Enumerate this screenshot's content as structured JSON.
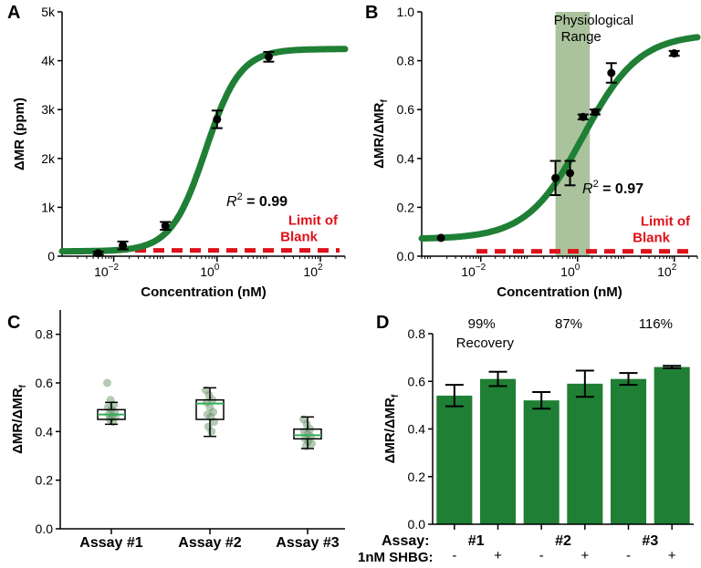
{
  "colors": {
    "green": "#1f7f35",
    "blank": "#e0101a",
    "band": "#9cb88c",
    "box_point": "#5a8a5a"
  },
  "panels": {
    "a": "A",
    "b": "B",
    "c": "C",
    "d": "D"
  },
  "chart_data": [
    {
      "id": "A",
      "type": "line",
      "xlabel": "Concentration (nM)",
      "ylabel": "ΔMR (ppm)",
      "xscale": "log",
      "xlim": [
        0.001,
        300
      ],
      "ylim": [
        0,
        5000
      ],
      "yticks": [
        {
          "v": 0,
          "t": "0"
        },
        {
          "v": 1000,
          "t": "1k"
        },
        {
          "v": 2000,
          "t": "2k"
        },
        {
          "v": 3000,
          "t": "3k"
        },
        {
          "v": 4000,
          "t": "4k"
        },
        {
          "v": 5000,
          "t": "5k"
        }
      ],
      "xticks": [
        {
          "v": 0.01,
          "b": "10",
          "e": "−2"
        },
        {
          "v": 1,
          "b": "10",
          "e": "0"
        },
        {
          "v": 100,
          "b": "10",
          "e": "2"
        }
      ],
      "fit": {
        "bottom": 100,
        "top": 4240,
        "ec50": 0.6,
        "hill": 1.3
      },
      "points": [
        {
          "x": 0.005,
          "y": 60,
          "err": 30
        },
        {
          "x": 0.015,
          "y": 220,
          "err": 80
        },
        {
          "x": 0.1,
          "y": 620,
          "err": 80
        },
        {
          "x": 1,
          "y": 2800,
          "err": 180
        },
        {
          "x": 10,
          "y": 4080,
          "err": 100
        }
      ],
      "blank_y": 120,
      "r2_label": "R",
      "r2_exp": "2",
      "r2_value": "= 0.99",
      "blank_label": [
        "Limit of",
        "Blank"
      ]
    },
    {
      "id": "B",
      "type": "line",
      "xlabel": "Concentration (nM)",
      "ylabel": "ΔMR/ΔMR",
      "ylabel_sub": "f",
      "xscale": "log",
      "xlim": [
        0.0006,
        300
      ],
      "ylim": [
        0,
        1.0
      ],
      "yticks": [
        {
          "v": 0,
          "t": "0.0"
        },
        {
          "v": 0.2,
          "t": "0.2"
        },
        {
          "v": 0.4,
          "t": "0.4"
        },
        {
          "v": 0.6,
          "t": "0.6"
        },
        {
          "v": 0.8,
          "t": "0.8"
        },
        {
          "v": 1.0,
          "t": "1.0"
        }
      ],
      "xticks": [
        {
          "v": 0.01,
          "b": "10",
          "e": "−2"
        },
        {
          "v": 1,
          "b": "10",
          "e": "0"
        },
        {
          "v": 100,
          "b": "10",
          "e": "2"
        }
      ],
      "band": [
        0.35,
        1.8
      ],
      "band_label": [
        "Physiological",
        "Range"
      ],
      "fit": {
        "bottom": 0.07,
        "top": 0.91,
        "ec50": 1.3,
        "hill": 0.75
      },
      "points": [
        {
          "x": 0.0015,
          "y": 0.075,
          "err": 0
        },
        {
          "x": 0.35,
          "y": 0.32,
          "err": 0.07
        },
        {
          "x": 0.7,
          "y": 0.34,
          "err": 0.05
        },
        {
          "x": 1.3,
          "y": 0.57,
          "err": 0.01
        },
        {
          "x": 2.3,
          "y": 0.59,
          "err": 0.01
        },
        {
          "x": 5,
          "y": 0.75,
          "err": 0.04
        },
        {
          "x": 100,
          "y": 0.83,
          "err": 0.01
        }
      ],
      "blank_y": 0.02,
      "r2_label": "R",
      "r2_exp": "2",
      "r2_value": "= 0.97",
      "blank_label": [
        "Limit of",
        "Blank"
      ]
    },
    {
      "id": "C",
      "type": "box",
      "ylabel": "ΔMR/ΔMR",
      "ylabel_sub": "f",
      "ylim": [
        0,
        0.9
      ],
      "yticks": [
        {
          "v": 0,
          "t": "0.0"
        },
        {
          "v": 0.2,
          "t": "0.2"
        },
        {
          "v": 0.4,
          "t": "0.4"
        },
        {
          "v": 0.6,
          "t": "0.6"
        },
        {
          "v": 0.8,
          "t": "0.8"
        }
      ],
      "categories": [
        "Assay #1",
        "Assay #2",
        "Assay #3"
      ],
      "boxes": [
        {
          "min": 0.43,
          "q1": 0.45,
          "median": 0.47,
          "q3": 0.49,
          "max": 0.52,
          "points": [
            0.6,
            0.53,
            0.51,
            0.5,
            0.49,
            0.48,
            0.47,
            0.46,
            0.46,
            0.45,
            0.44
          ]
        },
        {
          "min": 0.38,
          "q1": 0.45,
          "median": 0.515,
          "q3": 0.53,
          "max": 0.58,
          "points": [
            0.57,
            0.55,
            0.53,
            0.52,
            0.5,
            0.48,
            0.47,
            0.46,
            0.44,
            0.42,
            0.4
          ]
        },
        {
          "min": 0.33,
          "q1": 0.37,
          "median": 0.385,
          "q3": 0.41,
          "max": 0.46,
          "points": [
            0.45,
            0.43,
            0.41,
            0.4,
            0.39,
            0.38,
            0.37,
            0.36,
            0.35,
            0.34
          ]
        }
      ]
    },
    {
      "id": "D",
      "type": "bar",
      "ylabel": "ΔMR/ΔMR",
      "ylabel_sub": "f",
      "ylim": [
        0,
        0.8
      ],
      "yticks": [
        {
          "v": 0,
          "t": "0.0"
        },
        {
          "v": 0.2,
          "t": "0.2"
        },
        {
          "v": 0.4,
          "t": "0.4"
        },
        {
          "v": 0.6,
          "t": "0.6"
        },
        {
          "v": 0.8,
          "t": "0.8"
        }
      ],
      "values": [
        0.54,
        0.61,
        0.52,
        0.59,
        0.61,
        0.66
      ],
      "errors": [
        0.045,
        0.03,
        0.035,
        0.055,
        0.025,
        0.005
      ],
      "shbg": [
        "-",
        "+",
        "-",
        "+",
        "-",
        "+"
      ],
      "assay_row_label": "Assay:",
      "shbg_row_label": "1nM SHBG:",
      "assays": [
        "#1",
        "#2",
        "#3"
      ],
      "recovery": [
        "99%",
        "87%",
        "116%"
      ],
      "recovery_word": "Recovery"
    }
  ]
}
